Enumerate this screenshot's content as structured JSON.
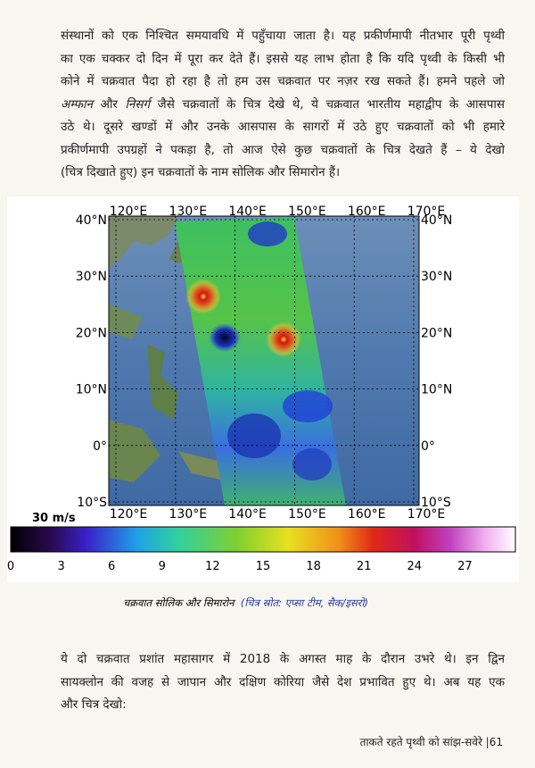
{
  "paragraph_1": {
    "lines": [
      [
        "संस्थानों को एक निश्चित समयावधि में पहुँचाया जाता है। यह प्रकीर्णमापी नीतभार पूरी पृथ्वी"
      ],
      [
        "का एक चक्कर दो दिन में पूरा कर देते हैं। इससे यह लाभ होता है कि यदि पृथ्वी के किसी भी"
      ],
      [
        "कोने में चक्रवात पैदा हो रहा है तो हम उस चक्रवात पर नज़र रख सकते हैं। हमने पहले जो"
      ],
      [
        {
          "text": "अम्फान",
          "italic": true
        },
        " और ",
        {
          "text": "निसर्ग",
          "italic": true
        },
        " जैसे चक्रवातों के चित्र देखे थे, ये चक्रवात भारतीय महाद्वीप के आसपास"
      ],
      [
        "उठे थे। दूसरे खण्डों में और उनके आसपास के सागरों में उठे हुए चक्रवातों को भी हमारे"
      ],
      [
        "प्रकीर्णमापी उपग्रहों ने पकड़ा है, तो आज ऐसे कुछ चक्रवातों के चित्र देखते हैं – ये देखो"
      ],
      [
        "(चित्र दिखाते हुए) इन चक्रवातों के नाम सोलिक और सिमारोन हैं।"
      ]
    ]
  },
  "figure": {
    "longitude_labels": [
      "120°E",
      "130°E",
      "140°E",
      "150°E",
      "160°E",
      "170°E"
    ],
    "latitude_labels": [
      "40°N",
      "30°N",
      "20°N",
      "10°N",
      "0°",
      "10°S"
    ],
    "colorbar_label": "30 m/s",
    "colorbar_ticks": [
      0,
      3,
      6,
      9,
      12,
      15,
      18,
      21,
      24,
      27
    ],
    "caption": "चक्रवात सोलिक और सिमारोन",
    "source": "(चित्र स्रोत: एप्सा टीम, सैक/इसरो)"
  },
  "paragraph_2": {
    "lines": [
      [
        "ये दो चक्रवात प्रशांत महासागर में 2018 के अगस्त माह के दौरान उभरे थे। इन द्विन"
      ],
      [
        "सायक्लोन की वजह से जापान और दक्षिण कोरिया जैसे देश प्रभावित हुए थे। अब यह एक"
      ],
      [
        "और चित्र देखो:"
      ]
    ]
  },
  "footer": {
    "title": "ताकते रहते पृथ्वी को सांझ-सवेरे",
    "page": "61"
  }
}
